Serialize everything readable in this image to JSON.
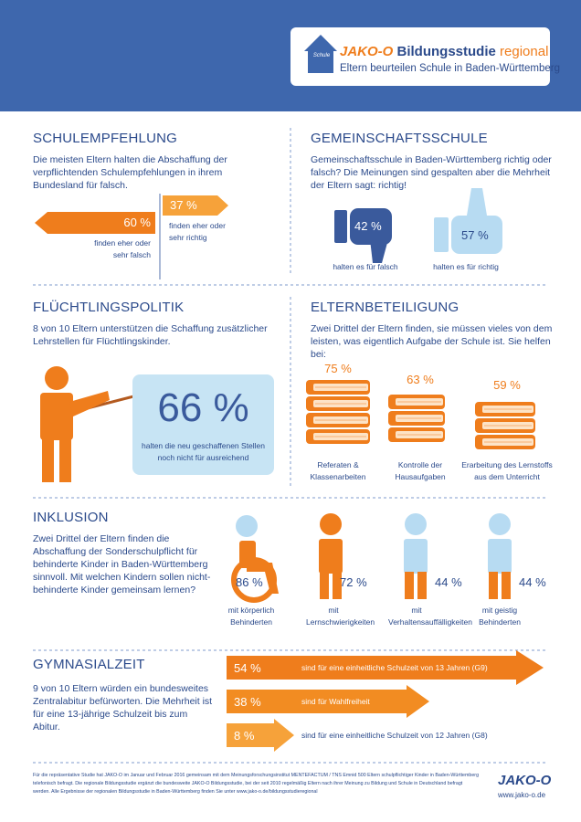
{
  "header": {
    "logo_house": "Schule",
    "brand": "JAKO-O",
    "title": "Bildungsstudie",
    "title_accent": "regional",
    "subtitle": "Eltern beurteilen Schule in Baden-Württemberg"
  },
  "sections": [
    {
      "title": "SCHULEMPFEHLUNG",
      "text": "Die meisten Eltern halten die Abschaffung der verpflichtenden Schulempfehlungen in ihrem Bundesland für falsch.",
      "items": [
        {
          "value": "60 %",
          "label": "finden eher oder sehr falsch"
        },
        {
          "value": "37 %",
          "label": "finden eher oder sehr richtig"
        }
      ]
    },
    {
      "title": "GEMEINSCHAFTSSCHULE",
      "text": "Gemeinschaftsschule in Baden-Württemberg richtig oder falsch? Die Meinungen sind gespalten aber die Mehrheit der Eltern sagt: richtig!",
      "items": [
        {
          "value": "42 %",
          "label": "halten es für falsch"
        },
        {
          "value": "57 %",
          "label": "halten es für richtig"
        }
      ]
    },
    {
      "title": "FLÜCHTLINGSPOLITIK",
      "text": "8 von 10 Eltern unterstützen die Schaffung zusätzlicher Lehrstellen für Flüchtlingskinder.",
      "items": [
        {
          "value": "66 %",
          "label": "halten die neu geschaffenen Stellen noch nicht für ausreichend"
        }
      ]
    },
    {
      "title": "ELTERNBETEILIGUNG",
      "text": "Zwei Drittel der Eltern finden, sie müssen vieles von dem leisten, was eigentlich Aufgabe der Schule ist. Sie helfen bei:",
      "items": [
        {
          "value": "75 %",
          "label": "Referaten & Klassenarbeiten"
        },
        {
          "value": "63 %",
          "label": "Kontrolle der Hausaufgaben"
        },
        {
          "value": "59 %",
          "label": "Erarbeitung des Lernstoffs aus dem Unterricht"
        }
      ]
    },
    {
      "title": "INKLUSION",
      "text": "Zwei Drittel der Eltern finden die Abschaffung der Sonderschulpflicht für behinderte Kinder in Baden-Württemberg sinnvoll. Mit welchen Kindern sollen nicht-behinderte Kinder gemeinsam lernen?",
      "items": [
        {
          "value": "86 %",
          "label": "mit körperlich Behinderten"
        },
        {
          "value": "72 %",
          "label": "mit Lernschwierigkeiten"
        },
        {
          "value": "44 %",
          "label": "mit Verhaltensauffälligkeiten"
        },
        {
          "value": "44 %",
          "label": "mit geistig Behinderten"
        }
      ]
    },
    {
      "title": "GYMNASIALZEIT",
      "text": "9 von 10 Eltern würden ein bundesweites Zentralabitur befürworten. Die Mehrheit ist für eine 13-jährige Schulzeit bis zum Abitur.",
      "items": [
        {
          "value": "54 %",
          "label": "sind für eine einheitliche Schulzeit von 13 Jahren (G9)"
        },
        {
          "value": "38 %",
          "label": "sind für Wahlfreiheit"
        },
        {
          "value": "8 %",
          "label": "sind für eine einheitliche Schulzeit von 12 Jahren (G8)"
        }
      ]
    }
  ],
  "footer": {
    "text": "Für die repräsentative Studie hat JAKO-O im Januar und Februar 2016 gemeinsam mit dem Meinungsforschungsinstitut MENTEFACTUM / TNS Emnid 500 Eltern schulpflichtiger Kinder in Baden-Württemberg telefonisch befragt. Die regionale Bildungsstudie ergänzt die bundesweite JAKO-O Bildungsstudie, bei der seit 2010 regelmäßig Eltern nach ihrer Meinung zu Bildung und Schule in Deutschland befragt werden. Alle Ergebnisse der regionalen Bildungsstudie in Baden-Württemberg finden Sie unter www.jako-o.de/bildungsstudieregional",
    "brand": "JAKO-O",
    "url": "www.jako-o.de"
  }
}
